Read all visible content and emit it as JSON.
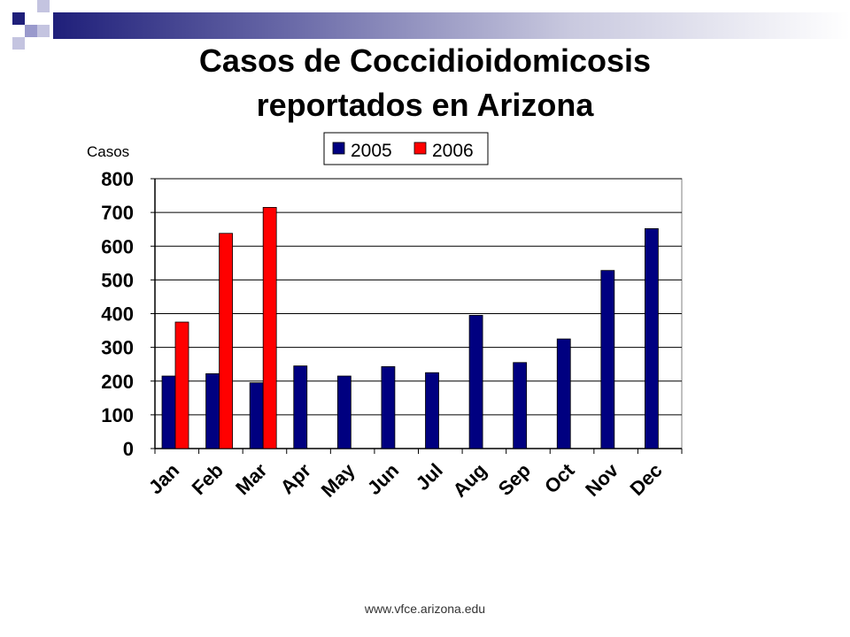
{
  "slide": {
    "title_line1": "Casos de Coccidioidomicosis",
    "title_line2": "reportados en Arizona",
    "source": "www.vfce.arizona.edu"
  },
  "colors": {
    "series_2005": "#000080",
    "series_2006": "#ff0000",
    "accent_dark": "#1f1f7a",
    "accent_light": "#9999cc"
  },
  "chart_data": {
    "type": "bar",
    "title": "Casos de Coccidioidomicosis reportados en Arizona",
    "ylabel": "Casos",
    "xlabel": "",
    "categories": [
      "Jan",
      "Feb",
      "Mar",
      "Apr",
      "May",
      "Jun",
      "Jul",
      "Aug",
      "Sep",
      "Oct",
      "Nov",
      "Dec"
    ],
    "series": [
      {
        "name": "2005",
        "values": [
          215,
          222,
          195,
          245,
          215,
          243,
          225,
          395,
          255,
          325,
          528,
          652
        ]
      },
      {
        "name": "2006",
        "values": [
          375,
          638,
          715,
          null,
          null,
          null,
          null,
          null,
          null,
          null,
          null,
          null
        ]
      }
    ],
    "ylim": [
      0,
      800
    ],
    "yticks": [
      "0",
      "100",
      "200",
      "300",
      "400",
      "500",
      "600",
      "700",
      "800"
    ],
    "grid": true,
    "legend": "top-center"
  }
}
